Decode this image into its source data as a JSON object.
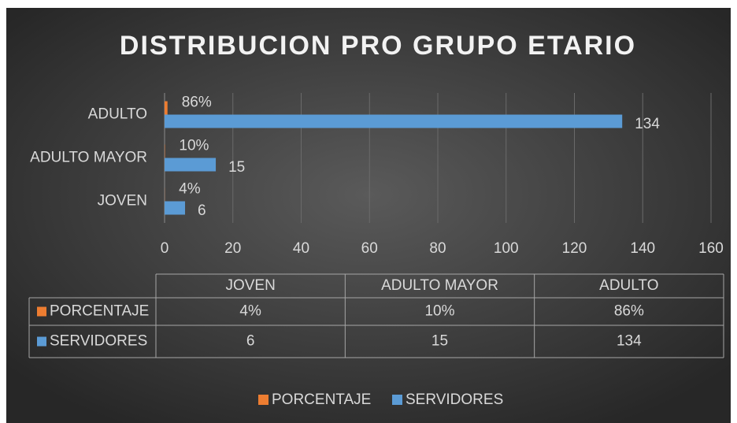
{
  "chart_data": {
    "type": "bar",
    "orientation": "horizontal",
    "title": "DISTRIBUCION PRO GRUPO ETARIO",
    "categories": [
      "JOVEN",
      "ADULTO MAYOR",
      "ADULTO"
    ],
    "series": [
      {
        "name": "PORCENTAJE",
        "color": "#ed7d31",
        "values": [
          0.04,
          0.1,
          0.86
        ],
        "value_labels": [
          "4%",
          "10%",
          "86%"
        ]
      },
      {
        "name": "SERVIDORES",
        "color": "#5b9bd5",
        "values": [
          6,
          15,
          134
        ]
      }
    ],
    "xlim": [
      0,
      160
    ],
    "xticks": [
      0,
      20,
      40,
      60,
      80,
      100,
      120,
      140,
      160
    ],
    "grid": true,
    "data_table": true,
    "legend": "bottom"
  }
}
